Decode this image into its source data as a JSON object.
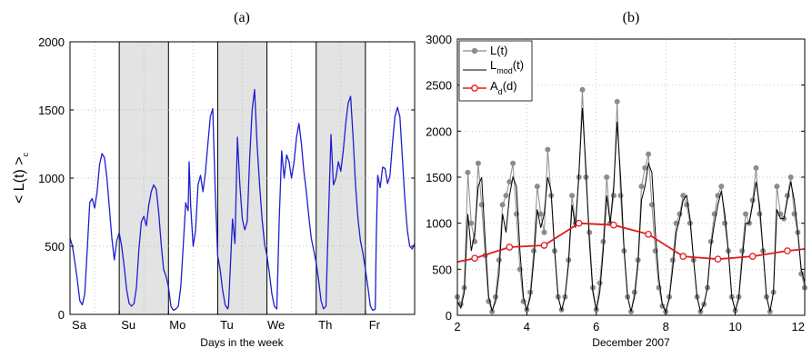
{
  "colors": {
    "series_a": "#1f1fd0",
    "L": "#8c8c8c",
    "Lmod": "#000000",
    "Ad": "#e31a1c",
    "weekend": "#e3e3e3"
  },
  "chart_data": [
    {
      "type": "line",
      "title": "(a)",
      "ylabel": "< L(t) >",
      "ylabel_sub": "c",
      "xlabel": "Days in the week",
      "xlim": [
        0,
        7
      ],
      "ylim": [
        0,
        2000
      ],
      "yticks": [
        0,
        500,
        1000,
        1500,
        2000
      ],
      "xtick_labels": [
        "Sa",
        "Su",
        "Mo",
        "Tu",
        "We",
        "Th",
        "Fr"
      ],
      "grid": true,
      "shaded_days": [
        [
          1,
          2
        ],
        [
          3,
          4
        ],
        [
          5,
          6
        ]
      ],
      "series": [
        {
          "x": [
            0,
            0.05,
            0.1,
            0.15,
            0.2,
            0.25,
            0.3,
            0.35,
            0.4,
            0.45,
            0.5,
            0.55,
            0.6,
            0.65,
            0.7,
            0.75,
            0.8,
            0.85,
            0.9,
            0.95,
            1.0,
            1.05,
            1.1,
            1.15,
            1.2,
            1.25,
            1.3,
            1.35,
            1.4,
            1.45,
            1.5,
            1.55,
            1.6,
            1.65,
            1.7,
            1.75,
            1.8,
            1.85,
            1.9,
            1.95,
            2.0,
            2.05,
            2.1,
            2.15,
            2.2,
            2.25,
            2.3,
            2.35,
            2.4,
            2.42,
            2.45,
            2.5,
            2.55,
            2.6,
            2.65,
            2.7,
            2.75,
            2.8,
            2.85,
            2.9,
            2.95,
            3.0,
            3.05,
            3.1,
            3.15,
            3.2,
            3.22,
            3.25,
            3.3,
            3.35,
            3.4,
            3.45,
            3.5,
            3.55,
            3.6,
            3.65,
            3.7,
            3.75,
            3.8,
            3.85,
            3.9,
            3.95,
            4.0,
            4.05,
            4.1,
            4.15,
            4.2,
            4.22,
            4.25,
            4.3,
            4.35,
            4.4,
            4.45,
            4.5,
            4.55,
            4.6,
            4.65,
            4.7,
            4.75,
            4.8,
            4.85,
            4.9,
            4.95,
            5.0,
            5.05,
            5.1,
            5.15,
            5.2,
            5.22,
            5.25,
            5.3,
            5.35,
            5.4,
            5.45,
            5.5,
            5.55,
            5.6,
            5.65,
            5.7,
            5.75,
            5.8,
            5.85,
            5.9,
            5.95,
            6.0,
            6.05,
            6.1,
            6.15,
            6.2,
            6.22,
            6.25,
            6.3,
            6.35,
            6.4,
            6.45,
            6.5,
            6.55,
            6.6,
            6.65,
            6.7,
            6.75,
            6.8,
            6.85,
            6.9,
            6.95,
            7.0
          ],
          "y": [
            560,
            500,
            380,
            250,
            100,
            70,
            150,
            480,
            820,
            850,
            780,
            900,
            1100,
            1180,
            1150,
            1000,
            780,
            560,
            400,
            540,
            600,
            500,
            350,
            180,
            80,
            60,
            80,
            200,
            480,
            680,
            720,
            650,
            800,
            900,
            950,
            920,
            750,
            520,
            330,
            280,
            200,
            60,
            30,
            40,
            60,
            200,
            500,
            820,
            760,
            1120,
            800,
            500,
            620,
            950,
            1020,
            900,
            1040,
            1250,
            1450,
            1510,
            900,
            430,
            330,
            180,
            70,
            40,
            60,
            300,
            700,
            520,
            1300,
            950,
            700,
            620,
            680,
            1150,
            1500,
            1650,
            1250,
            950,
            700,
            520,
            430,
            300,
            150,
            60,
            40,
            300,
            700,
            1200,
            1000,
            1170,
            1120,
            1000,
            1120,
            1300,
            1400,
            1250,
            1050,
            900,
            720,
            560,
            470,
            380,
            250,
            100,
            40,
            60,
            340,
            720,
            1320,
            950,
            1000,
            1120,
            1050,
            1200,
            1400,
            1550,
            1600,
            1300,
            950,
            700,
            540,
            450,
            330,
            200,
            60,
            30,
            40,
            560,
            1020,
            930,
            1080,
            1070,
            960,
            1020,
            1250,
            1450,
            1520,
            1450,
            1150,
            850,
            620,
            500,
            480,
            520
          ]
        }
      ]
    },
    {
      "type": "line",
      "title": "(b)",
      "xlabel": "December 2007",
      "xlim": [
        2,
        12
      ],
      "ylim": [
        0,
        3000
      ],
      "xticks": [
        2,
        4,
        6,
        8,
        10,
        12
      ],
      "yticks": [
        0,
        500,
        1000,
        1500,
        2000,
        2500,
        3000
      ],
      "grid": true,
      "legend": {
        "position": "top-left",
        "entries": [
          {
            "main": "L(t)",
            "sub": ""
          },
          {
            "main": "L",
            "sub": "mod",
            "suffix": "(t)"
          },
          {
            "main": "A",
            "sub": "d",
            "suffix": "(d)"
          }
        ]
      },
      "series": [
        {
          "name": "L(t)",
          "x": [
            2.0,
            2.1,
            2.2,
            2.3,
            2.4,
            2.5,
            2.6,
            2.7,
            2.8,
            2.9,
            3.0,
            3.1,
            3.2,
            3.3,
            3.4,
            3.5,
            3.6,
            3.7,
            3.8,
            3.9,
            4.0,
            4.1,
            4.2,
            4.3,
            4.4,
            4.5,
            4.6,
            4.7,
            4.8,
            4.9,
            5.0,
            5.1,
            5.2,
            5.3,
            5.4,
            5.5,
            5.6,
            5.7,
            5.8,
            5.9,
            6.0,
            6.1,
            6.2,
            6.3,
            6.4,
            6.5,
            6.6,
            6.7,
            6.8,
            6.9,
            7.0,
            7.1,
            7.2,
            7.3,
            7.4,
            7.5,
            7.6,
            7.7,
            7.8,
            7.9,
            8.0,
            8.1,
            8.2,
            8.3,
            8.4,
            8.5,
            8.6,
            8.7,
            8.8,
            8.9,
            9.0,
            9.1,
            9.2,
            9.3,
            9.4,
            9.5,
            9.6,
            9.7,
            9.8,
            9.9,
            10.0,
            10.1,
            10.2,
            10.3,
            10.4,
            10.5,
            10.6,
            10.7,
            10.8,
            10.9,
            11.0,
            11.1,
            11.2,
            11.3,
            11.4,
            11.5,
            11.6,
            11.7,
            11.8,
            11.9,
            12.0
          ],
          "y": [
            200,
            120,
            300,
            1550,
            1000,
            800,
            1650,
            1200,
            650,
            150,
            40,
            200,
            600,
            1200,
            1300,
            1450,
            1650,
            1100,
            500,
            150,
            60,
            250,
            700,
            1400,
            1100,
            900,
            1800,
            1300,
            700,
            200,
            60,
            200,
            600,
            1300,
            1000,
            1500,
            2450,
            1500,
            900,
            300,
            60,
            350,
            800,
            1500,
            1000,
            1300,
            2320,
            1300,
            700,
            200,
            40,
            250,
            600,
            1400,
            1600,
            1750,
            1200,
            700,
            300,
            100,
            40,
            200,
            600,
            1000,
            1100,
            1300,
            1200,
            1000,
            600,
            200,
            40,
            120,
            300,
            800,
            1100,
            1300,
            1400,
            1000,
            700,
            200,
            50,
            200,
            700,
            1100,
            1000,
            1250,
            1600,
            1100,
            700,
            200,
            40,
            250,
            1400,
            1100,
            1050,
            1300,
            1500,
            1100,
            900,
            450,
            300
          ]
        },
        {
          "name": "Lmod(t)",
          "x": [
            2.0,
            2.1,
            2.2,
            2.3,
            2.4,
            2.5,
            2.6,
            2.7,
            2.8,
            2.9,
            3.0,
            3.1,
            3.2,
            3.3,
            3.4,
            3.5,
            3.6,
            3.7,
            3.8,
            3.9,
            4.0,
            4.1,
            4.2,
            4.3,
            4.4,
            4.5,
            4.6,
            4.7,
            4.8,
            4.9,
            5.0,
            5.1,
            5.2,
            5.3,
            5.4,
            5.5,
            5.6,
            5.7,
            5.8,
            5.9,
            6.0,
            6.1,
            6.2,
            6.3,
            6.4,
            6.5,
            6.6,
            6.7,
            6.8,
            6.9,
            7.0,
            7.1,
            7.2,
            7.3,
            7.4,
            7.5,
            7.6,
            7.7,
            7.8,
            7.9,
            8.0,
            8.1,
            8.2,
            8.3,
            8.4,
            8.5,
            8.6,
            8.7,
            8.8,
            8.9,
            9.0,
            9.1,
            9.2,
            9.3,
            9.4,
            9.5,
            9.6,
            9.7,
            9.8,
            9.9,
            10.0,
            10.1,
            10.2,
            10.3,
            10.4,
            10.5,
            10.6,
            10.7,
            10.8,
            10.9,
            11.0,
            11.1,
            11.2,
            11.3,
            11.4,
            11.5,
            11.6,
            11.7,
            11.8,
            11.9,
            12.0
          ],
          "y": [
            150,
            80,
            250,
            1100,
            700,
            900,
            1400,
            1500,
            800,
            200,
            50,
            150,
            450,
            1100,
            900,
            1300,
            1500,
            1400,
            700,
            200,
            50,
            200,
            600,
            1150,
            950,
            1100,
            1500,
            1350,
            700,
            200,
            50,
            200,
            550,
            1200,
            950,
            1550,
            2250,
            1600,
            800,
            250,
            50,
            250,
            700,
            1300,
            1000,
            1400,
            2100,
            1500,
            700,
            200,
            40,
            200,
            550,
            1250,
            1400,
            1650,
            1550,
            900,
            400,
            120,
            40,
            180,
            500,
            900,
            1050,
            1250,
            1300,
            1050,
            600,
            200,
            40,
            120,
            300,
            750,
            1000,
            1200,
            1350,
            1100,
            700,
            200,
            50,
            180,
            600,
            1000,
            1000,
            1200,
            1450,
            1200,
            700,
            200,
            40,
            250,
            1150,
            1050,
            1050,
            1250,
            1450,
            1250,
            900,
            500,
            350
          ]
        },
        {
          "name": "Ad(d)",
          "x": [
            2.0,
            2.5,
            3.5,
            4.5,
            5.5,
            6.5,
            7.5,
            8.5,
            9.5,
            10.5,
            11.5,
            12.0
          ],
          "y": [
            580,
            620,
            740,
            760,
            1000,
            980,
            880,
            640,
            610,
            640,
            700,
            720
          ]
        }
      ]
    }
  ]
}
